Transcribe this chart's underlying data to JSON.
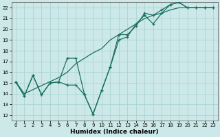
{
  "xlabel": "Humidex (Indice chaleur)",
  "background_color": "#cce8e8",
  "grid_color": "#aad4d4",
  "line_color": "#1a7060",
  "xlim": [
    -0.5,
    23.5
  ],
  "ylim": [
    11.5,
    22.5
  ],
  "xticks": [
    0,
    1,
    2,
    3,
    4,
    5,
    6,
    7,
    8,
    9,
    10,
    11,
    12,
    13,
    14,
    15,
    16,
    17,
    18,
    19,
    20,
    21,
    22,
    23
  ],
  "yticks": [
    12,
    13,
    14,
    15,
    16,
    17,
    18,
    19,
    20,
    21,
    22
  ],
  "line1_x": [
    0,
    1,
    2,
    3,
    4,
    5,
    6,
    7,
    8,
    9,
    10,
    11,
    12,
    13,
    14,
    15,
    16,
    17,
    18,
    19,
    20,
    21,
    22,
    23
  ],
  "line1_y": [
    15.1,
    13.8,
    15.7,
    13.9,
    15.0,
    15.1,
    14.8,
    14.8,
    13.9,
    12.1,
    14.3,
    16.5,
    19.0,
    19.3,
    20.5,
    21.3,
    20.5,
    21.5,
    22.3,
    22.5,
    22.0,
    22.0,
    22.0,
    22.0
  ],
  "line2_x": [
    0,
    1,
    2,
    3,
    4,
    5,
    6,
    7,
    8,
    9,
    10,
    11,
    12,
    13,
    14,
    15,
    16,
    17,
    18,
    19,
    20,
    21,
    22,
    23
  ],
  "line2_y": [
    15.1,
    13.8,
    15.7,
    13.9,
    15.0,
    15.1,
    17.3,
    17.3,
    13.9,
    12.1,
    14.3,
    16.5,
    19.5,
    19.5,
    20.3,
    21.5,
    21.3,
    21.8,
    22.3,
    22.5,
    22.0,
    22.0,
    22.0,
    22.0
  ],
  "line3_x": [
    0,
    1,
    5,
    6,
    7,
    8,
    9,
    10,
    11,
    12,
    13,
    14,
    15,
    16,
    17,
    18,
    19,
    20,
    21,
    22,
    23
  ],
  "line3_y": [
    15.1,
    14.0,
    15.5,
    16.0,
    16.8,
    17.3,
    17.8,
    18.2,
    19.0,
    19.5,
    20.0,
    20.5,
    21.0,
    21.3,
    21.5,
    21.8,
    22.0,
    22.0,
    22.0,
    22.0,
    22.0
  ]
}
